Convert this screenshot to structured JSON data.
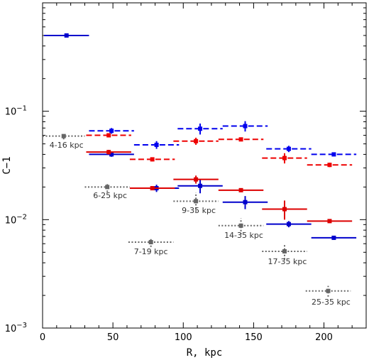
{
  "chart_data": {
    "type": "scatter",
    "title": "",
    "xlabel": "R, kpc",
    "ylabel": "C−1",
    "xlim": [
      0,
      230
    ],
    "ylim": [
      0.001,
      1.0
    ],
    "yscale": "log",
    "x_ticks": [
      0,
      50,
      100,
      150,
      200
    ],
    "y_ticks": [
      {
        "value": 0.001,
        "mantissa": "10",
        "exponent": "−3"
      },
      {
        "value": 0.01,
        "mantissa": "10",
        "exponent": "−2"
      },
      {
        "value": 0.1,
        "mantissa": "10",
        "exponent": "−1"
      }
    ],
    "grid": false,
    "series": [
      {
        "color": "#0000cc",
        "linestyle": "solid",
        "points": [
          {
            "x": 17,
            "y": 0.5,
            "xerr": 16,
            "yerr_lo": 0.0,
            "yerr_hi": 0.0
          },
          {
            "x": 49,
            "y": 0.04,
            "xerr": 16,
            "yerr_lo": 0.002,
            "yerr_hi": 0.002
          },
          {
            "x": 81,
            "y": 0.0195,
            "xerr": 16,
            "yerr_lo": 0.0015,
            "yerr_hi": 0.0015
          },
          {
            "x": 112,
            "y": 0.0205,
            "xerr": 16,
            "yerr_lo": 0.003,
            "yerr_hi": 0.003
          },
          {
            "x": 144,
            "y": 0.0145,
            "xerr": 16,
            "yerr_lo": 0.002,
            "yerr_hi": 0.002
          },
          {
            "x": 175,
            "y": 0.0091,
            "xerr": 16,
            "yerr_lo": 0.0006,
            "yerr_hi": 0.0006
          },
          {
            "x": 207,
            "y": 0.0068,
            "xerr": 16,
            "yerr_lo": 0.0002,
            "yerr_hi": 0.0002
          }
        ]
      },
      {
        "color": "#0000ee",
        "linestyle": "dashed",
        "points": [
          {
            "x": 49,
            "y": 0.066,
            "xerr": 16,
            "yerr_lo": 0.004,
            "yerr_hi": 0.004
          },
          {
            "x": 81,
            "y": 0.049,
            "xerr": 16,
            "yerr_lo": 0.004,
            "yerr_hi": 0.004
          },
          {
            "x": 112,
            "y": 0.069,
            "xerr": 16,
            "yerr_lo": 0.008,
            "yerr_hi": 0.008
          },
          {
            "x": 144,
            "y": 0.073,
            "xerr": 16,
            "yerr_lo": 0.008,
            "yerr_hi": 0.008
          },
          {
            "x": 175,
            "y": 0.045,
            "xerr": 16,
            "yerr_lo": 0.003,
            "yerr_hi": 0.003
          },
          {
            "x": 207,
            "y": 0.04,
            "xerr": 16,
            "yerr_lo": 0.001,
            "yerr_hi": 0.001
          }
        ]
      },
      {
        "color": "#dd0000",
        "linestyle": "solid",
        "points": [
          {
            "x": 47,
            "y": 0.042,
            "xerr": 16,
            "yerr_lo": 0.002,
            "yerr_hi": 0.002
          },
          {
            "x": 78,
            "y": 0.0195,
            "xerr": 16,
            "yerr_lo": 0.0008,
            "yerr_hi": 0.0008
          },
          {
            "x": 109,
            "y": 0.0235,
            "xerr": 16,
            "yerr_lo": 0.002,
            "yerr_hi": 0.002
          },
          {
            "x": 141,
            "y": 0.0187,
            "xerr": 16,
            "yerr_lo": 0.0006,
            "yerr_hi": 0.0006
          },
          {
            "x": 172,
            "y": 0.0125,
            "xerr": 16,
            "yerr_lo": 0.0025,
            "yerr_hi": 0.0025
          },
          {
            "x": 204,
            "y": 0.0097,
            "xerr": 16,
            "yerr_lo": 0.0004,
            "yerr_hi": 0.0004
          }
        ]
      },
      {
        "color": "#ee0000",
        "linestyle": "dashed",
        "points": [
          {
            "x": 47,
            "y": 0.06,
            "xerr": 16,
            "yerr_lo": 0.002,
            "yerr_hi": 0.002
          },
          {
            "x": 78,
            "y": 0.036,
            "xerr": 16,
            "yerr_lo": 0.0015,
            "yerr_hi": 0.0015
          },
          {
            "x": 109,
            "y": 0.053,
            "xerr": 16,
            "yerr_lo": 0.004,
            "yerr_hi": 0.004
          },
          {
            "x": 141,
            "y": 0.055,
            "xerr": 16,
            "yerr_lo": 0.002,
            "yerr_hi": 0.002
          },
          {
            "x": 172,
            "y": 0.037,
            "xerr": 16,
            "yerr_lo": 0.004,
            "yerr_hi": 0.004
          },
          {
            "x": 204,
            "y": 0.032,
            "xerr": 16,
            "yerr_lo": 0.0015,
            "yerr_hi": 0.0015
          }
        ]
      },
      {
        "color": "#666666",
        "linestyle": "dotted",
        "points": [
          {
            "x": 15,
            "y": 0.059,
            "xerr": 15,
            "yerr_lo": 0.004,
            "yerr_hi": 0.004
          },
          {
            "x": 46,
            "y": 0.02,
            "xerr": 16,
            "yerr_lo": 0.002,
            "yerr_hi": 0.002
          },
          {
            "x": 77,
            "y": 0.0062,
            "xerr": 16,
            "yerr_lo": 0.0006,
            "yerr_hi": 0.0006
          },
          {
            "x": 109,
            "y": 0.0148,
            "xerr": 16,
            "yerr_lo": 0.003,
            "yerr_hi": 0.003
          },
          {
            "x": 141,
            "y": 0.0088,
            "xerr": 16,
            "yerr_lo": 0.0015,
            "yerr_hi": 0.0015
          },
          {
            "x": 172,
            "y": 0.0051,
            "xerr": 16,
            "yerr_lo": 0.0008,
            "yerr_hi": 0.0008
          },
          {
            "x": 203,
            "y": 0.0022,
            "xerr": 16,
            "yerr_lo": 0.00025,
            "yerr_hi": 0.00025
          }
        ]
      }
    ],
    "annotations": [
      {
        "text": "4-16 kpc",
        "x": 17,
        "y": 0.046
      },
      {
        "text": "6-25 kpc",
        "x": 48,
        "y": 0.0158
      },
      {
        "text": "7-19 kpc",
        "x": 77,
        "y": 0.0048
      },
      {
        "text": "9-35 kpc",
        "x": 111,
        "y": 0.0115
      },
      {
        "text": "14-35 kpc",
        "x": 143,
        "y": 0.0068
      },
      {
        "text": "17-35 kpc",
        "x": 174,
        "y": 0.0039
      },
      {
        "text": "25-35 kpc",
        "x": 205,
        "y": 0.00165
      }
    ]
  }
}
